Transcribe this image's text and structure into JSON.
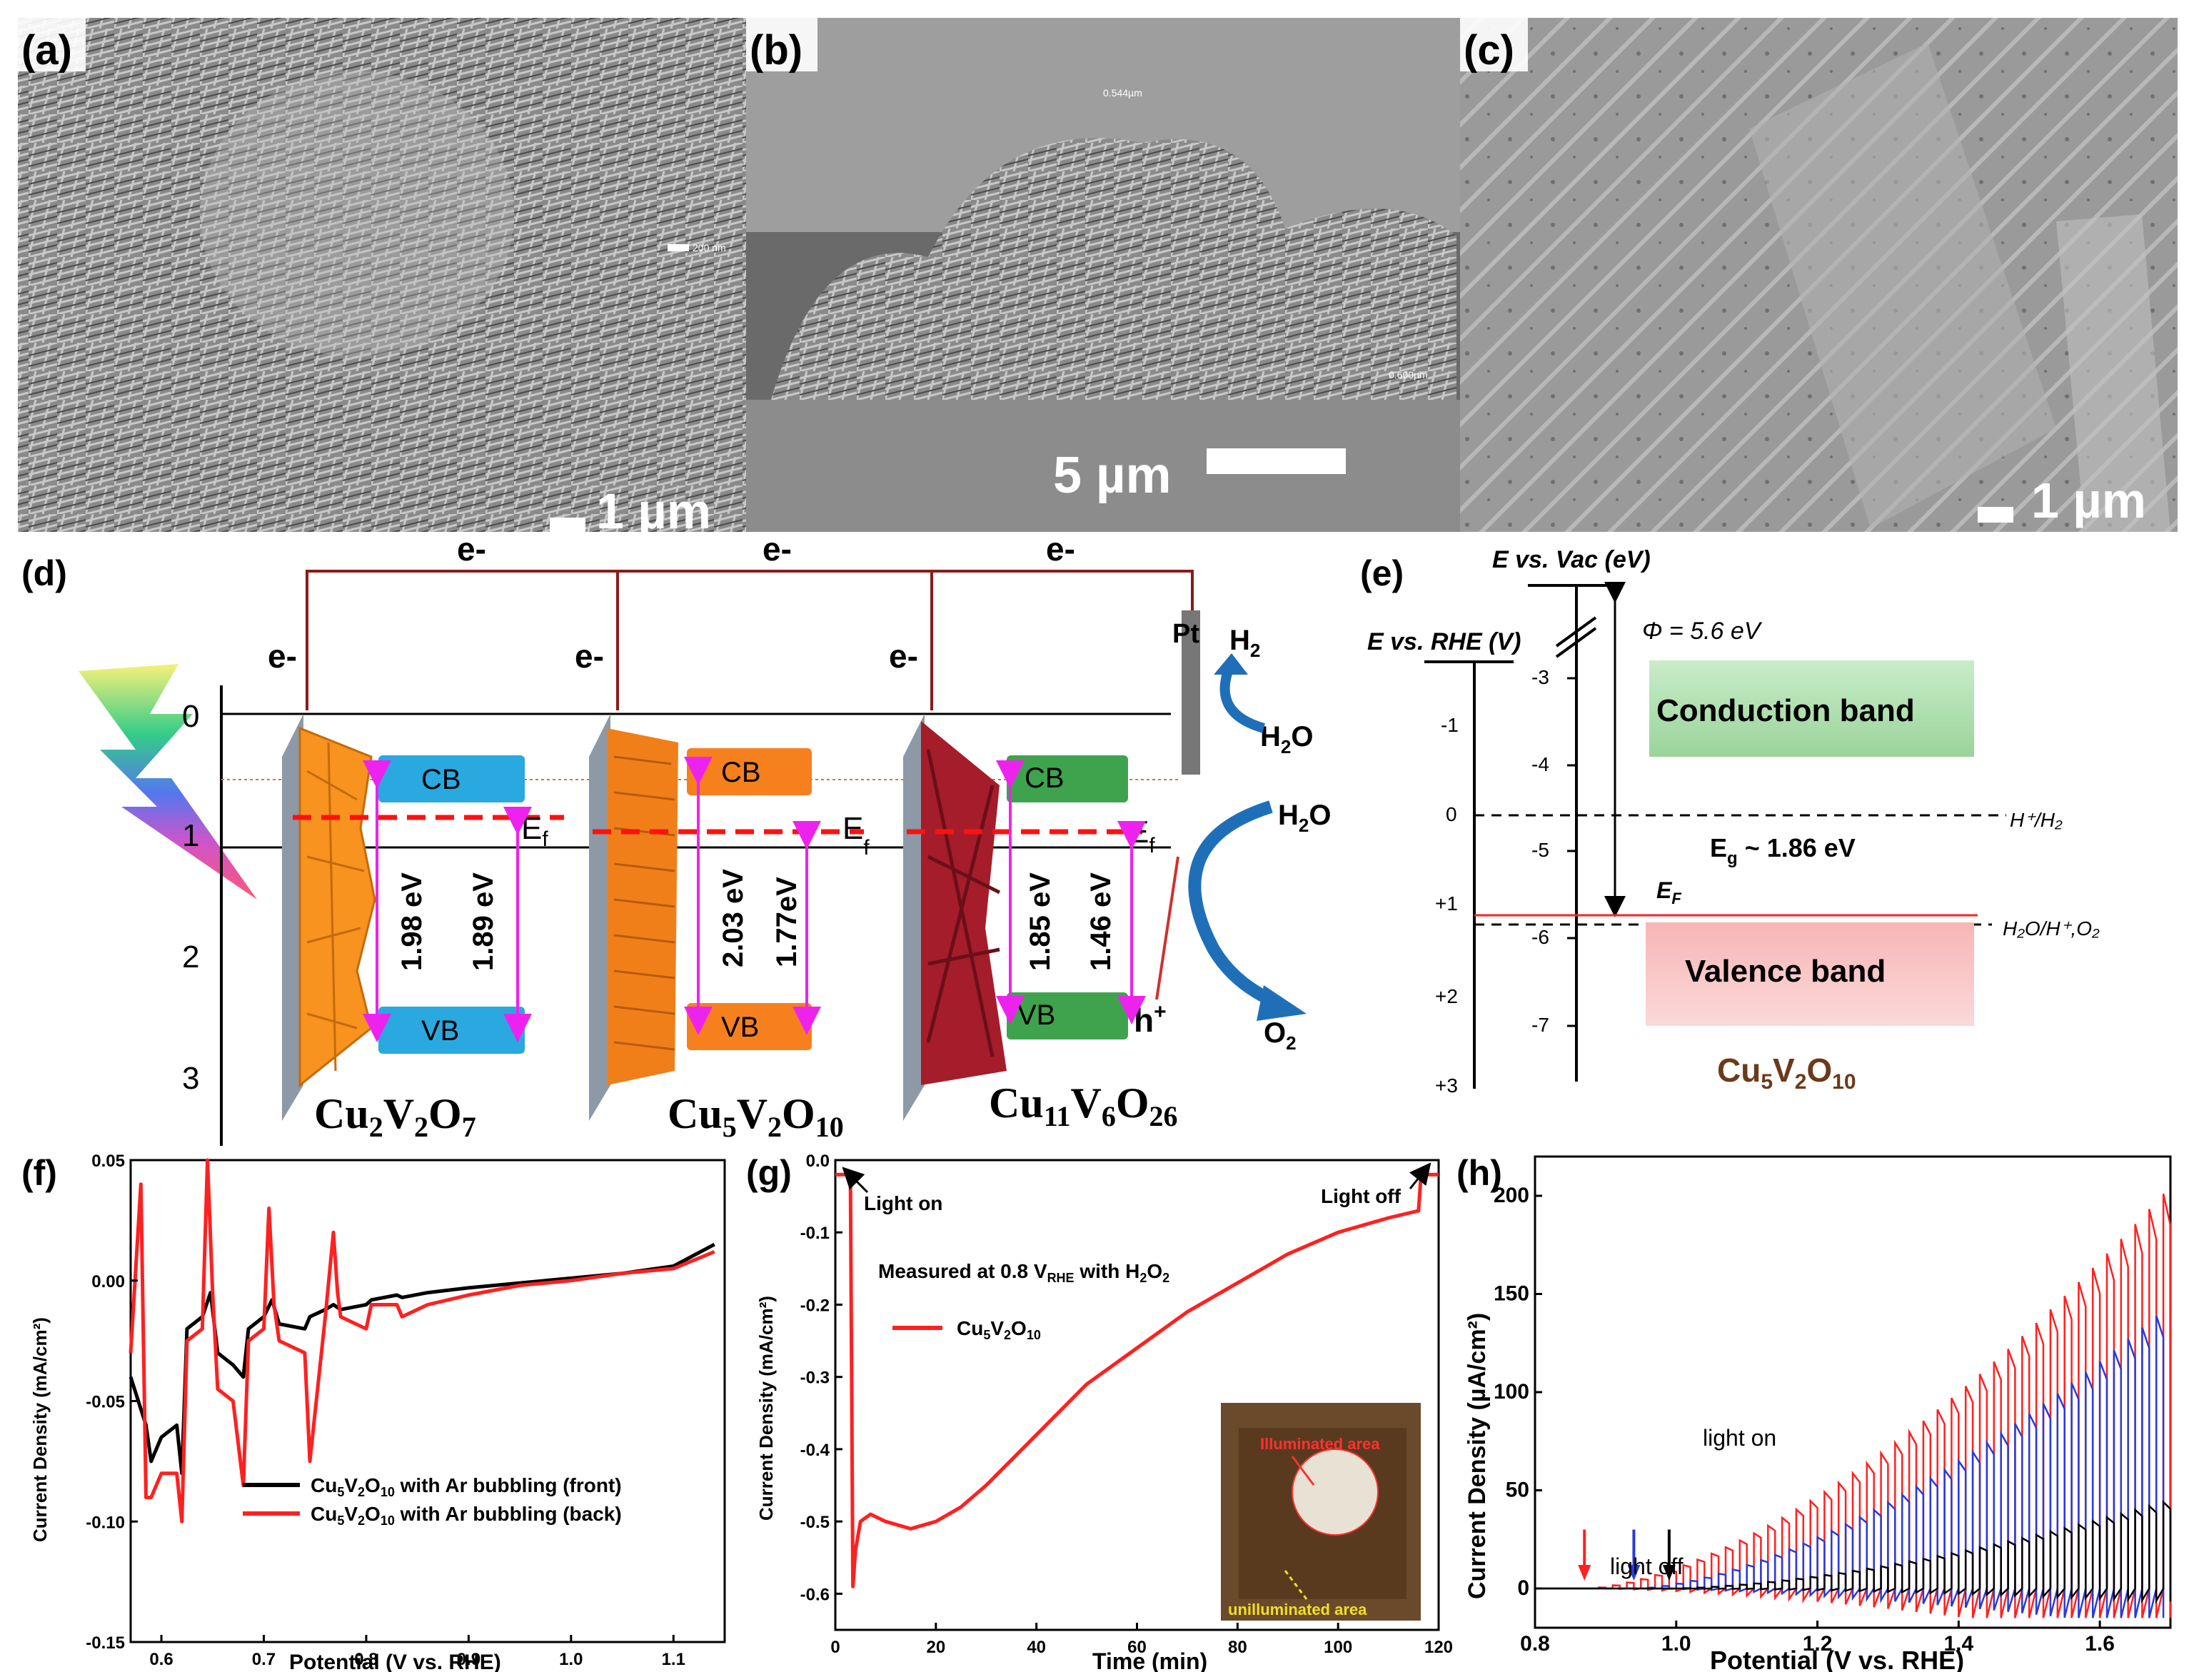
{
  "panels": {
    "a": {
      "label": "(a)",
      "scale": "1 µm",
      "inset_scale": "200 nm"
    },
    "b": {
      "label": "(b)",
      "scale": "5 µm",
      "meas1": "0.544µm",
      "meas2": "0.600µm"
    },
    "c": {
      "label": "(c)",
      "scale": "1 µm"
    },
    "d": {
      "label": "(d)",
      "electron": "e-",
      "axis_ticks": [
        "0",
        "1",
        "2",
        "3"
      ],
      "pt": "Pt",
      "h2": "H",
      "h2_sub": "2",
      "h2o": "H",
      "h2o_sub": "2",
      "h2o_o": "O",
      "o2": "O",
      "o2_sub": "2",
      "hole": "h",
      "hole_sup": "+",
      "ef": "E",
      "ef_sub": "f",
      "cb": "CB",
      "vb": "VB",
      "materials": [
        {
          "name": "Cu",
          "n1": "2",
          "m": "V",
          "n2": "2",
          "o": "O",
          "n3": "7",
          "gap1": "1.98 eV",
          "gap2": "1.89 eV"
        },
        {
          "name": "Cu",
          "n1": "5",
          "m": "V",
          "n2": "2",
          "o": "O",
          "n3": "10",
          "gap1": "2.03 eV",
          "gap2": "1.77eV"
        },
        {
          "name": "Cu",
          "n1": "11",
          "m": "V",
          "n2": "6",
          "o": "O",
          "n3": "26",
          "gap1": "1.85 eV",
          "gap2": "1.46 eV"
        }
      ],
      "colors": {
        "cu2v2o7": "#f7931e",
        "cu5v2o10": "#f07f1a",
        "cu11v6o26": "#a51d2a",
        "cb_blue": "#29a9e0",
        "cb_green": "#3fa34d"
      }
    },
    "e": {
      "label": "(e)",
      "vac_axis_title": "E vs. Vac (eV)",
      "rhe_axis_title": "E vs. RHE (V)",
      "phi": "Φ = 5.6 eV",
      "vac_ticks": [
        "-3",
        "-4",
        "-5",
        "-6",
        "-7"
      ],
      "rhe_ticks": [
        "-1",
        "0",
        "+1",
        "+2",
        "+3"
      ],
      "conduction": "Conduction band",
      "valence": "Valence band",
      "eg": "E",
      "eg_sub": "g",
      "eg_val": " ~ 1.86 eV",
      "ef": "E",
      "ef_sub": "F",
      "h_h2": "H⁺/H₂",
      "h2o_o2": "H₂O/H⁺,O₂",
      "material": "Cu",
      "m1": "5",
      "m2": "V",
      "m3": "2",
      "m4": "O",
      "m5": "10"
    },
    "f": {
      "label": "(f)",
      "ylabel": "Current Density (mA/cm²)",
      "xlabel": "Potential (V vs. RHE)"
    },
    "g": {
      "label": "(g)",
      "ylabel": "Current Density (mA/cm²)",
      "xlabel": "Time (min)",
      "light_on": "Light on",
      "light_off": "Light off",
      "measured": "Measured at 0.8 V",
      "measured_sub": "RHE",
      "measured_tail": " with H",
      "measured_sub2": "2",
      "measured_o": "O",
      "measured_sub3": "2",
      "illuminated": "Illuminated area",
      "unilluminated": "unilluminated area"
    },
    "h": {
      "label": "(h)",
      "ylabel": "Current Density (µA/cm²)",
      "xlabel": "Potential (V vs. RHE)",
      "light_on": "light on",
      "light_off": "light off"
    }
  },
  "chart_data": [
    {
      "type": "line",
      "panel": "f",
      "title": "",
      "xlabel": "Potential (V vs. RHE)",
      "ylabel": "Current Density (mA/cm²)",
      "xlim": [
        0.57,
        1.15
      ],
      "ylim": [
        -0.15,
        0.05
      ],
      "xticks": [
        0.6,
        0.7,
        0.8,
        0.9,
        1.0,
        1.1
      ],
      "xtick_labels": [
        "0.6",
        "0.7",
        "0.8",
        "0.9",
        "1.0",
        "1.1"
      ],
      "yticks": [
        -0.15,
        -0.1,
        -0.05,
        0.0,
        0.05
      ],
      "ytick_labels": [
        "-0.15",
        "-0.10",
        "-0.05",
        "0.00",
        "0.05"
      ],
      "legend": [
        {
          "name": "Cu",
          "sub1": "5",
          "mid": "V",
          "sub2": "2",
          "o": "O",
          "sub3": "10",
          "tail": " with Ar bubbling (front)",
          "color": "#000000"
        },
        {
          "name": "Cu",
          "sub1": "5",
          "mid": "V",
          "sub2": "2",
          "o": "O",
          "sub3": "10",
          "tail": " with Ar bubbling (back)",
          "color": "#ff2020"
        }
      ],
      "series": [
        {
          "name": "front",
          "color": "#000000",
          "x": [
            0.57,
            0.585,
            0.59,
            0.6,
            0.615,
            0.62,
            0.625,
            0.64,
            0.648,
            0.655,
            0.67,
            0.68,
            0.685,
            0.7,
            0.708,
            0.715,
            0.74,
            0.745,
            0.76,
            0.768,
            0.775,
            0.8,
            0.805,
            0.83,
            0.835,
            0.86,
            0.9,
            0.95,
            1.0,
            1.05,
            1.1,
            1.14
          ],
          "y": [
            -0.04,
            -0.06,
            -0.075,
            -0.065,
            -0.06,
            -0.08,
            -0.02,
            -0.015,
            -0.005,
            -0.03,
            -0.035,
            -0.04,
            -0.02,
            -0.015,
            -0.008,
            -0.018,
            -0.02,
            -0.015,
            -0.012,
            -0.01,
            -0.012,
            -0.01,
            -0.008,
            -0.006,
            -0.007,
            -0.005,
            -0.003,
            -0.001,
            0.001,
            0.003,
            0.006,
            0.015
          ]
        },
        {
          "name": "back",
          "color": "#ff2020",
          "x": [
            0.57,
            0.58,
            0.585,
            0.59,
            0.6,
            0.615,
            0.62,
            0.625,
            0.64,
            0.645,
            0.65,
            0.655,
            0.67,
            0.68,
            0.685,
            0.7,
            0.705,
            0.71,
            0.715,
            0.74,
            0.745,
            0.76,
            0.768,
            0.772,
            0.775,
            0.8,
            0.805,
            0.83,
            0.835,
            0.86,
            0.9,
            0.95,
            1.0,
            1.05,
            1.1,
            1.14
          ],
          "y": [
            -0.03,
            0.04,
            -0.09,
            -0.09,
            -0.08,
            -0.08,
            -0.1,
            -0.025,
            -0.02,
            0.05,
            -0.005,
            -0.045,
            -0.05,
            -0.085,
            -0.025,
            -0.02,
            0.03,
            -0.01,
            -0.025,
            -0.03,
            -0.075,
            -0.015,
            0.02,
            -0.005,
            -0.015,
            -0.02,
            -0.01,
            -0.01,
            -0.015,
            -0.01,
            -0.006,
            -0.002,
            0.0,
            0.003,
            0.005,
            0.012
          ]
        }
      ]
    },
    {
      "type": "line",
      "panel": "g",
      "title": "",
      "xlabel": "Time (min)",
      "ylabel": "Current Density (mA/cm²)",
      "xlim": [
        0,
        120
      ],
      "ylim": [
        -0.65,
        0.0
      ],
      "xticks": [
        0,
        20,
        40,
        60,
        80,
        100,
        120
      ],
      "xtick_labels": [
        "0",
        "20",
        "40",
        "60",
        "80",
        "100",
        "120"
      ],
      "yticks": [
        0.0,
        -0.1,
        -0.2,
        -0.3,
        -0.4,
        -0.5,
        -0.6
      ],
      "ytick_labels": [
        "0.0",
        "-0.1",
        "-0.2",
        "-0.3",
        "-0.4",
        "-0.5",
        "-0.6"
      ],
      "legend": [
        {
          "name": "Cu",
          "sub1": "5",
          "mid": "V",
          "sub2": "2",
          "o": "O",
          "sub3": "10",
          "tail": "",
          "color": "#ff2020"
        }
      ],
      "series": [
        {
          "name": "Cu5V2O10",
          "color": "#ff2020",
          "x": [
            0,
            3,
            3.5,
            4,
            5,
            7,
            10,
            15,
            20,
            25,
            30,
            40,
            50,
            60,
            70,
            80,
            90,
            100,
            110,
            116,
            116.5,
            120
          ],
          "y": [
            -0.02,
            -0.02,
            -0.59,
            -0.54,
            -0.5,
            -0.49,
            -0.5,
            -0.51,
            -0.5,
            -0.48,
            -0.45,
            -0.38,
            -0.31,
            -0.26,
            -0.21,
            -0.17,
            -0.13,
            -0.1,
            -0.08,
            -0.07,
            -0.02,
            -0.02
          ]
        }
      ]
    },
    {
      "type": "line",
      "panel": "h",
      "title": "",
      "xlabel": "Potential (V vs. RHE)",
      "ylabel": "Current Density (µA/cm²)",
      "xlim": [
        0.8,
        1.7
      ],
      "ylim": [
        -20,
        220
      ],
      "xticks": [
        0.8,
        1.0,
        1.2,
        1.4,
        1.6
      ],
      "xtick_labels": [
        "0.8",
        "1.0",
        "1.2",
        "1.4",
        "1.6"
      ],
      "yticks": [
        0,
        50,
        100,
        150,
        200
      ],
      "ytick_labels": [
        "0",
        "50",
        "100",
        "150",
        "200"
      ],
      "series": [
        {
          "name": "red",
          "color": "#ff2020",
          "onset": 0.87,
          "pulse_top_at_end": 205
        },
        {
          "name": "blue",
          "color": "#2a3ad8",
          "onset": 0.94,
          "pulse_top_at_end": 145
        },
        {
          "name": "black",
          "color": "#000000",
          "onset": 0.99,
          "pulse_top_at_end": 45
        }
      ],
      "arrows": [
        {
          "x": 0.87,
          "color": "#ff2020"
        },
        {
          "x": 0.94,
          "color": "#2a3ad8"
        },
        {
          "x": 0.99,
          "color": "#000000"
        }
      ]
    }
  ]
}
